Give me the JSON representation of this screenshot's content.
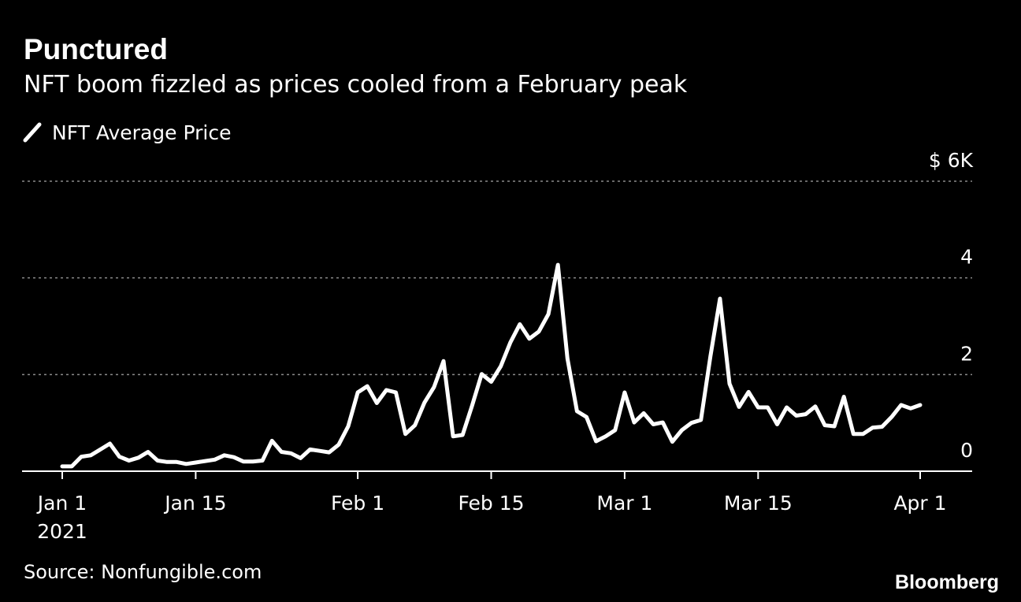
{
  "title": "Punctured",
  "subtitle": "NFT boom fizzled as prices cooled from a February peak",
  "source": "Source: Nonfungible.com",
  "brand": "Bloomberg",
  "colors": {
    "background": "#000000",
    "line": "#ffffff",
    "grid": "#8a8a8a",
    "text": "#ffffff"
  },
  "chart_data": {
    "type": "line",
    "title": "Punctured",
    "subtitle": "NFT boom fizzled as prices cooled from a February peak",
    "legend": {
      "position": "top-left",
      "entries": [
        "NFT Average Price"
      ]
    },
    "series": [
      {
        "name": "NFT Average Price",
        "x": [
          "2021-01-01",
          "2021-01-02",
          "2021-01-03",
          "2021-01-04",
          "2021-01-05",
          "2021-01-06",
          "2021-01-07",
          "2021-01-08",
          "2021-01-09",
          "2021-01-10",
          "2021-01-11",
          "2021-01-12",
          "2021-01-13",
          "2021-01-14",
          "2021-01-15",
          "2021-01-16",
          "2021-01-17",
          "2021-01-18",
          "2021-01-19",
          "2021-01-20",
          "2021-01-21",
          "2021-01-22",
          "2021-01-23",
          "2021-01-24",
          "2021-01-25",
          "2021-01-26",
          "2021-01-27",
          "2021-01-28",
          "2021-01-29",
          "2021-01-30",
          "2021-01-31",
          "2021-02-01",
          "2021-02-02",
          "2021-02-03",
          "2021-02-04",
          "2021-02-05",
          "2021-02-06",
          "2021-02-07",
          "2021-02-08",
          "2021-02-09",
          "2021-02-10",
          "2021-02-11",
          "2021-02-12",
          "2021-02-13",
          "2021-02-14",
          "2021-02-15",
          "2021-02-16",
          "2021-02-17",
          "2021-02-18",
          "2021-02-19",
          "2021-02-20",
          "2021-02-21",
          "2021-02-22",
          "2021-02-23",
          "2021-02-24",
          "2021-02-25",
          "2021-02-26",
          "2021-02-27",
          "2021-02-28",
          "2021-03-01",
          "2021-03-02",
          "2021-03-03",
          "2021-03-04",
          "2021-03-05",
          "2021-03-06",
          "2021-03-07",
          "2021-03-08",
          "2021-03-09",
          "2021-03-10",
          "2021-03-11",
          "2021-03-12",
          "2021-03-13",
          "2021-03-14",
          "2021-03-15",
          "2021-03-16",
          "2021-03-17",
          "2021-03-18",
          "2021-03-19",
          "2021-03-20",
          "2021-03-21",
          "2021-03-22",
          "2021-03-23",
          "2021-03-24",
          "2021-03-25",
          "2021-03-26",
          "2021-03-27",
          "2021-03-28",
          "2021-03-29",
          "2021-03-30",
          "2021-03-31",
          "2021-04-01"
        ],
        "y": [
          0.1,
          0.1,
          0.3,
          0.33,
          0.45,
          0.57,
          0.3,
          0.22,
          0.28,
          0.4,
          0.22,
          0.19,
          0.19,
          0.15,
          0.18,
          0.21,
          0.24,
          0.33,
          0.29,
          0.2,
          0.2,
          0.22,
          0.63,
          0.4,
          0.37,
          0.27,
          0.45,
          0.42,
          0.39,
          0.55,
          0.93,
          1.63,
          1.76,
          1.41,
          1.68,
          1.63,
          0.77,
          0.95,
          1.42,
          1.74,
          2.28,
          0.72,
          0.75,
          1.36,
          2.01,
          1.85,
          2.17,
          2.66,
          3.04,
          2.74,
          2.89,
          3.25,
          4.27,
          2.33,
          1.24,
          1.12,
          0.62,
          0.72,
          0.85,
          1.63,
          1.01,
          1.2,
          0.97,
          1.01,
          0.61,
          0.85,
          1.0,
          1.06,
          2.38,
          3.57,
          1.81,
          1.33,
          1.64,
          1.32,
          1.32,
          0.97,
          1.32,
          1.15,
          1.18,
          1.34,
          0.95,
          0.93,
          1.54,
          0.77,
          0.77,
          0.9,
          0.92,
          1.12,
          1.37,
          1.3,
          1.37
        ]
      }
    ],
    "yticks": [
      {
        "value": 0,
        "label": "0"
      },
      {
        "value": 2,
        "label": "2"
      },
      {
        "value": 4,
        "label": "4"
      },
      {
        "value": 6,
        "label": "$ 6K"
      }
    ],
    "xticks": [
      {
        "date": "2021-01-01",
        "label": "Jan 1",
        "sublabel": "2021"
      },
      {
        "date": "2021-01-15",
        "label": "Jan 15"
      },
      {
        "date": "2021-02-01",
        "label": "Feb 1"
      },
      {
        "date": "2021-02-15",
        "label": "Feb 15"
      },
      {
        "date": "2021-03-01",
        "label": "Mar 1"
      },
      {
        "date": "2021-03-15",
        "label": "Mar 15"
      },
      {
        "date": "2021-04-01",
        "label": "Apr 1"
      }
    ],
    "ylim": [
      0,
      6
    ],
    "xlim": [
      "2021-01-01",
      "2021-04-01"
    ],
    "grid": "horizontal dotted"
  }
}
